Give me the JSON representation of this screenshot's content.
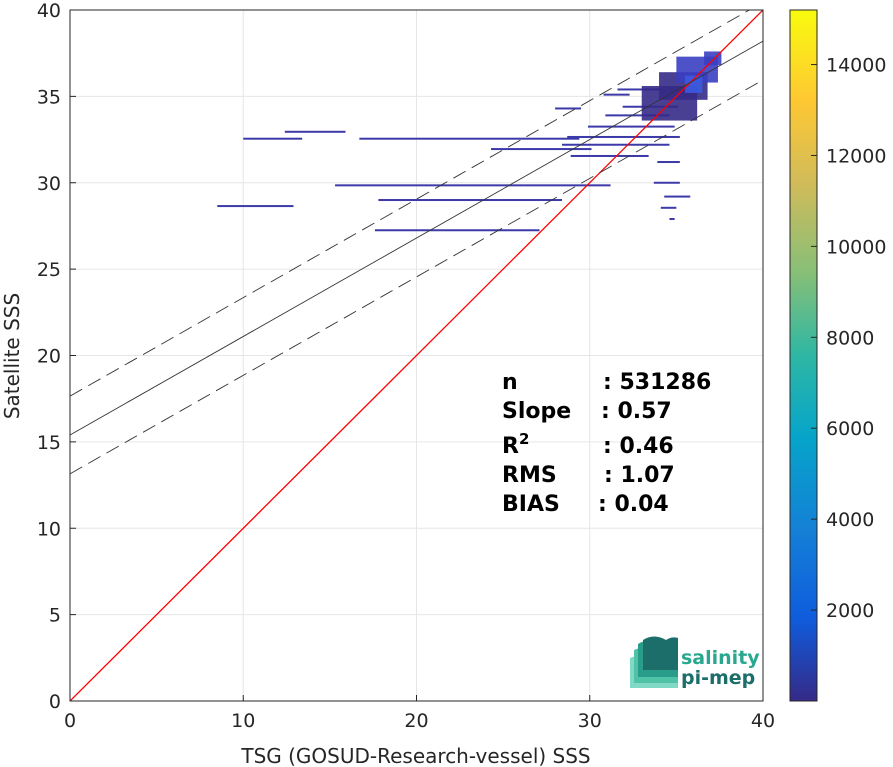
{
  "chart_data": {
    "type": "heatmap",
    "xlabel": "TSG (GOSUD-Research-vessel) SSS",
    "ylabel": "Satellite SSS",
    "xlim": [
      0,
      40
    ],
    "ylim": [
      0,
      40
    ],
    "xticks": [
      0,
      10,
      20,
      30,
      40
    ],
    "yticks": [
      0,
      5,
      10,
      15,
      20,
      25,
      30,
      35,
      40
    ],
    "grid": true,
    "colorbar": {
      "range": [
        0,
        15200
      ],
      "ticks": [
        2000,
        4000,
        6000,
        8000,
        10000,
        12000,
        14000
      ],
      "tick_labels": [
        "2000",
        "4000",
        "6000",
        "8000",
        "10000",
        "12000",
        "14000"
      ],
      "colormap": "parula"
    },
    "reference_line": {
      "name": "1:1",
      "slope": 1,
      "intercept": 0,
      "color": "#ff0000"
    },
    "regression": {
      "slope": 0.57,
      "intercept": 15.4,
      "band": 2.25
    },
    "stats": [
      {
        "label": "n",
        "value": ": 531286"
      },
      {
        "label": "Slope",
        "value": ": 0.57"
      },
      {
        "label": "R",
        "sup": "2",
        "value": ": 0.46"
      },
      {
        "label": "RMS",
        "value": ": 1.07"
      },
      {
        "label": "BIAS",
        "value": ": 0.04"
      }
    ],
    "density_segments": [
      {
        "x1": 8.5,
        "x2": 12.9,
        "y": 28.65
      },
      {
        "x1": 15.3,
        "x2": 26.2,
        "y": 29.85
      },
      {
        "x1": 26.2,
        "x2": 31.2,
        "y": 29.85
      },
      {
        "x1": 17.6,
        "x2": 27.1,
        "y": 27.25
      },
      {
        "x1": 17.8,
        "x2": 28.4,
        "y": 29.0
      },
      {
        "x1": 10.0,
        "x2": 13.4,
        "y": 32.55
      },
      {
        "x1": 12.4,
        "x2": 15.9,
        "y": 32.95
      },
      {
        "x1": 16.7,
        "x2": 29.4,
        "y": 32.55
      },
      {
        "x1": 24.3,
        "x2": 30.1,
        "y": 31.95
      },
      {
        "x1": 28.7,
        "x2": 35.2,
        "y": 32.65
      },
      {
        "x1": 29.9,
        "x2": 34.9,
        "y": 33.25
      },
      {
        "x1": 28.4,
        "x2": 34.6,
        "y": 32.2
      },
      {
        "x1": 28.9,
        "x2": 33.4,
        "y": 31.55
      },
      {
        "x1": 30.9,
        "x2": 34.6,
        "y": 33.9
      },
      {
        "x1": 31.9,
        "x2": 35.1,
        "y": 34.4
      },
      {
        "x1": 28.0,
        "x2": 29.5,
        "y": 34.3
      },
      {
        "x1": 30.8,
        "x2": 32.3,
        "y": 35.1
      },
      {
        "x1": 31.6,
        "x2": 34.2,
        "y": 35.4
      },
      {
        "x1": 33.7,
        "x2": 35.2,
        "y": 30.0
      },
      {
        "x1": 34.3,
        "x2": 35.8,
        "y": 29.2
      },
      {
        "x1": 33.9,
        "x2": 35.2,
        "y": 31.2
      },
      {
        "x1": 34.1,
        "x2": 35.0,
        "y": 28.55
      },
      {
        "x1": 34.6,
        "x2": 34.9,
        "y": 27.9
      }
    ],
    "density_blocks": [
      {
        "x1": 33.0,
        "x2": 36.2,
        "y1": 33.6,
        "y2": 35.6,
        "level": 700
      },
      {
        "x1": 34.0,
        "x2": 36.8,
        "y1": 34.8,
        "y2": 36.4,
        "level": 1200
      },
      {
        "x1": 35.0,
        "x2": 37.4,
        "y1": 35.8,
        "y2": 37.3,
        "level": 1600
      },
      {
        "x1": 35.5,
        "x2": 36.5,
        "y1": 35.2,
        "y2": 36.2,
        "level": 2600
      },
      {
        "x1": 36.6,
        "x2": 37.6,
        "y1": 36.8,
        "y2": 37.6,
        "level": 1400
      }
    ],
    "logo": {
      "line1": "salinity",
      "line2": "pi-mep"
    }
  }
}
